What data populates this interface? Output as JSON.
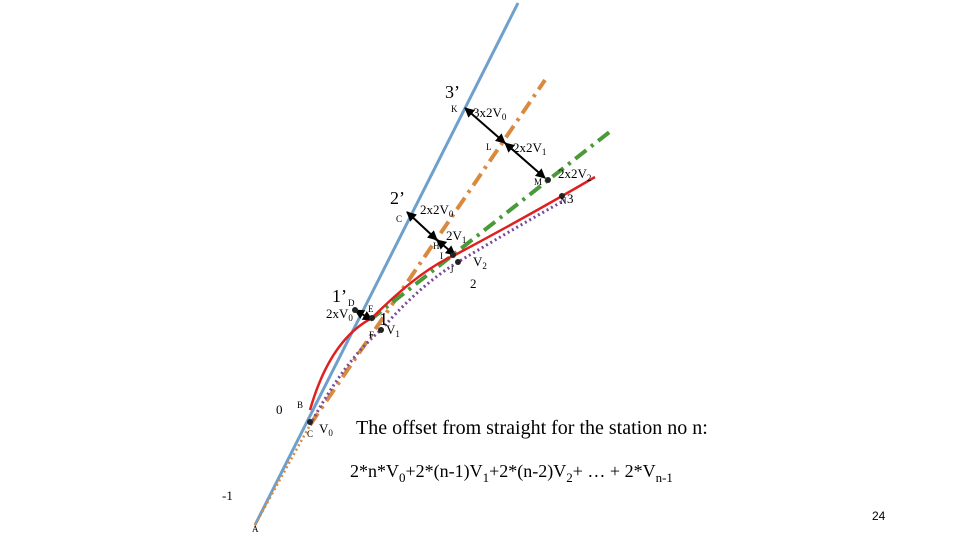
{
  "labels": {
    "k_mark": "3’",
    "k": "K",
    "k_offset": {
      "text": "3x2V",
      "sub": "0"
    },
    "l": "L",
    "l_offset": {
      "text": "2x2V",
      "sub": "1"
    },
    "m": "M",
    "m_offset": {
      "text": "2x2V",
      "sub": "2"
    },
    "n": "N",
    "n_station": "3",
    "c_mark": "2’",
    "c": "C",
    "c_offset": {
      "text": "2x2V",
      "sub": "0"
    },
    "h_offset": {
      "text": "2V",
      "sub": "1"
    },
    "h": "H",
    "i": "I",
    "j": "J",
    "j_offset": {
      "text": "V",
      "sub": "2"
    },
    "j_station": "2",
    "d_mark": "1’",
    "d": "D",
    "e": "E",
    "d_offset": {
      "text": "2xV",
      "sub": "0"
    },
    "e_station": "1",
    "f": "F",
    "f_offset": {
      "text": "V",
      "sub": "1"
    },
    "b_station": "0",
    "b": "B",
    "c2": "C",
    "c2_offset": {
      "text": "V",
      "sub": "0"
    },
    "a_station": "-1",
    "a": "A"
  },
  "caption": "The offset from straight for the station no n:",
  "formula": [
    {
      "text": "2*n*V",
      "sub": "0"
    },
    {
      "text": "+2*(n-1)V",
      "sub": "1"
    },
    {
      "text": "+2*(n-2)V",
      "sub": "2"
    },
    {
      "text": "+ … + 2*V",
      "sub": "n-1"
    }
  ],
  "page_number": "24"
}
